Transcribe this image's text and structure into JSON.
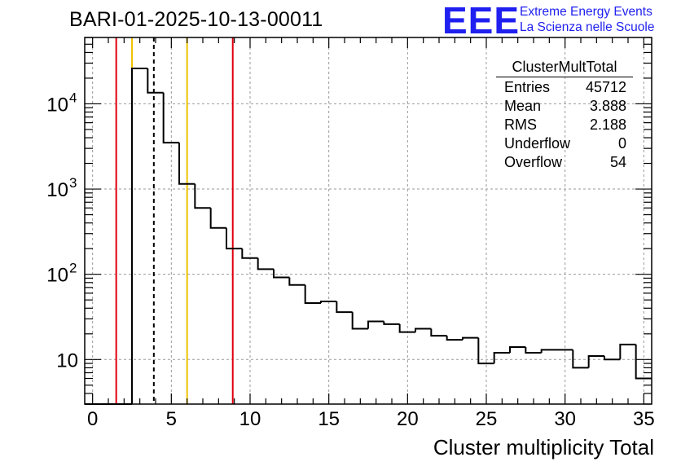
{
  "title": "BARI-01-2025-10-13-00011",
  "logo": {
    "text": "EEE",
    "line1": "Extreme Energy Events",
    "line2": "La Scienza nelle Scuole",
    "color": "#1f1ff0"
  },
  "stats_box": {
    "name": "ClusterMultTotal",
    "rows": [
      {
        "label": "Entries",
        "value": "45712"
      },
      {
        "label": "Mean",
        "value": "3.888"
      },
      {
        "label": "RMS",
        "value": "2.188"
      },
      {
        "label": "Underflow",
        "value": "0"
      },
      {
        "label": "Overflow",
        "value": "54"
      }
    ]
  },
  "chart_data": {
    "type": "histogram",
    "title": "BARI-01-2025-10-13-00011",
    "xlabel": "Cluster multiplicity Total",
    "ylabel": "",
    "xlim": [
      -0.5,
      35.5
    ],
    "ylim": [
      3,
      60000
    ],
    "log_y": true,
    "grid": true,
    "bin_edges_start": -0.5,
    "bin_width": 1,
    "counts": [
      0,
      0,
      0,
      26000,
      13500,
      3500,
      1150,
      600,
      350,
      200,
      155,
      115,
      92,
      75,
      46,
      48,
      36,
      23,
      28,
      26,
      21,
      23,
      19,
      17,
      18,
      9,
      12,
      14,
      12,
      13,
      13,
      8,
      11,
      10,
      15,
      6
    ],
    "xticks": [
      0,
      5,
      10,
      15,
      20,
      25,
      30,
      35
    ],
    "yticks": [
      {
        "value": 10,
        "label": "10"
      },
      {
        "value": 100,
        "label": "10",
        "exp": "2"
      },
      {
        "value": 1000,
        "label": "10",
        "exp": "3"
      },
      {
        "value": 10000,
        "label": "10",
        "exp": "4"
      }
    ],
    "vlines": [
      {
        "x": 1.5,
        "color": "#e0000e",
        "style": "solid"
      },
      {
        "x": 2.5,
        "color": "#f2c200",
        "style": "solid"
      },
      {
        "x": 3.888,
        "color": "#000000",
        "style": "dashed"
      },
      {
        "x": 6.0,
        "color": "#f2c200",
        "style": "solid"
      },
      {
        "x": 8.9,
        "color": "#e0000e",
        "style": "solid"
      }
    ],
    "line_color": "#000000"
  }
}
